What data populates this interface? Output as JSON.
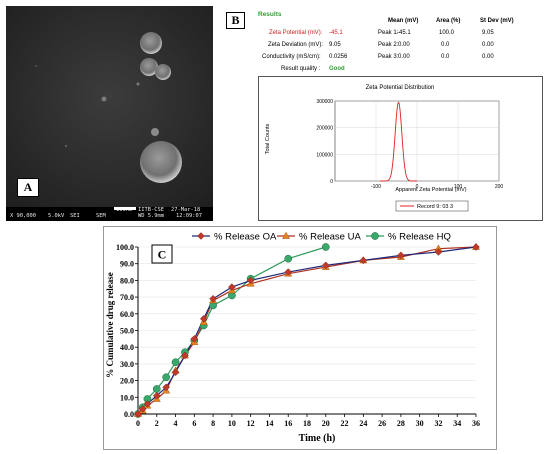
{
  "panel_a": {
    "label": "A",
    "scale_bar": {
      "magnification": "X 90,000",
      "voltage": "5.0kV",
      "detector": "SEI",
      "length": "100nm",
      "facility": "IITB-CSE",
      "date": "27-Mar-18",
      "mode": "SEM",
      "working_distance": "WD 5.9mm",
      "time": "12:09:07"
    }
  },
  "panel_b": {
    "label": "B",
    "results_title": "Results",
    "col_headers": [
      "Mean (mV)",
      "Area (%)",
      "St Dev (mV)"
    ],
    "zeta_potential_label": "Zeta Potential (mV):",
    "zeta_potential_value": "-45.1",
    "zeta_deviation_label": "Zeta Deviation (mV):",
    "zeta_deviation_value": "9.05",
    "conductivity_label": "Conductivity (mS/cm):",
    "conductivity_value": "0.0256",
    "result_quality_label": "Result quality :",
    "result_quality_value": "Good",
    "peaks": [
      {
        "label": "Peak 1:",
        "mean": "-45.1",
        "area": "100.0",
        "stdev": "9.05"
      },
      {
        "label": "Peak 2:",
        "mean": "0.00",
        "area": "0.0",
        "stdev": "0.00"
      },
      {
        "label": "Peak 3:",
        "mean": "0.00",
        "area": "0.0",
        "stdev": "0.00"
      }
    ],
    "dist_chart": {
      "title": "Zeta Potential Distribution",
      "xlabel": "Apparent Zeta Potential (mV)",
      "ylabel": "Total Counts",
      "x_ticks": [
        "-100",
        "0",
        "100",
        "200"
      ],
      "y_ticks": [
        "0",
        "100000",
        "200000",
        "300000"
      ],
      "legend": "Record 9: 03 3",
      "color": "#e02020"
    }
  },
  "chart_data": {
    "type": "line",
    "label": "C",
    "xlabel": "Time (h)",
    "ylabel": "% Cumulative drug release",
    "xlim": [
      0,
      36
    ],
    "ylim": [
      0,
      100
    ],
    "x_ticks": [
      "0",
      "2",
      "4",
      "6",
      "8",
      "10",
      "12",
      "14",
      "16",
      "18",
      "20",
      "22",
      "24",
      "26",
      "28",
      "30",
      "32",
      "34",
      "36"
    ],
    "y_ticks": [
      "0.0",
      "10.0",
      "20.0",
      "30.0",
      "40.0",
      "50.0",
      "60.0",
      "70.0",
      "80.0",
      "90.0",
      "100.0"
    ],
    "legend_position": "top",
    "series": [
      {
        "name": "% Release OA",
        "color": "#1f2a7a",
        "marker": "diamond",
        "marker_color": "#c0392b",
        "x": [
          0,
          0.5,
          1,
          2,
          3,
          4,
          5,
          6,
          7,
          8,
          10,
          12,
          16,
          20,
          24,
          28,
          32,
          36
        ],
        "y": [
          0,
          3,
          6,
          11,
          16,
          25,
          35,
          45,
          57,
          69,
          76,
          80,
          85,
          89,
          92,
          95,
          97,
          100
        ]
      },
      {
        "name": "% Release UA",
        "color": "#b03020",
        "marker": "triangle",
        "marker_color": "#e8821e",
        "x": [
          0,
          0.5,
          1,
          2,
          3,
          4,
          5,
          6,
          7,
          8,
          10,
          12,
          16,
          20,
          24,
          28,
          32,
          36
        ],
        "y": [
          0,
          2,
          5,
          9,
          14,
          26,
          35,
          43,
          55,
          68,
          74,
          78,
          84,
          88,
          92,
          94,
          99,
          100
        ]
      },
      {
        "name": "% Release HQ",
        "color": "#2e9a5a",
        "marker": "circle",
        "marker_color": "#3aa86a",
        "x": [
          0,
          0.5,
          1,
          2,
          3,
          4,
          5,
          6,
          7,
          8,
          10,
          12,
          16,
          20
        ],
        "y": [
          0,
          4,
          9,
          15,
          22,
          31,
          37,
          44,
          53,
          65,
          71,
          81,
          93,
          100
        ]
      }
    ]
  }
}
